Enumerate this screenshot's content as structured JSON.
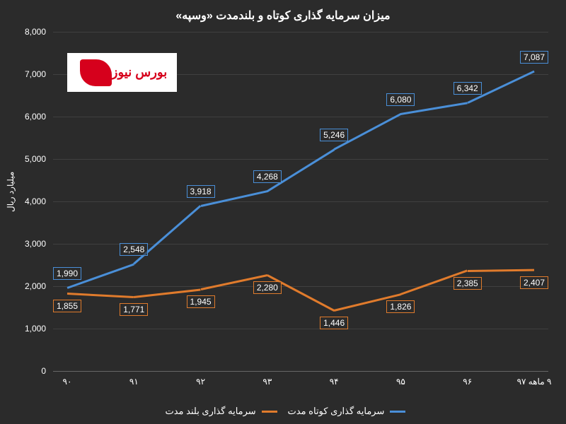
{
  "title": "میزان سرمایه گذاری کوتاه و بلندمدت «وسپه»",
  "ylabel": "میلیارد ریال",
  "background_color": "#2b2b2b",
  "grid_color": "#404040",
  "text_color": "#ffffff",
  "xlim": [
    0,
    7
  ],
  "ylim": [
    0,
    8000
  ],
  "ytick_step": 1000,
  "yticks": [
    {
      "v": 0,
      "label": "0"
    },
    {
      "v": 1000,
      "label": "1,000"
    },
    {
      "v": 2000,
      "label": "2,000"
    },
    {
      "v": 3000,
      "label": "3,000"
    },
    {
      "v": 4000,
      "label": "4,000"
    },
    {
      "v": 5000,
      "label": "5,000"
    },
    {
      "v": 6000,
      "label": "6,000"
    },
    {
      "v": 7000,
      "label": "7,000"
    },
    {
      "v": 8000,
      "label": "8,000"
    }
  ],
  "categories": [
    "۹۰",
    "۹۱",
    "۹۲",
    "۹۳",
    "۹۴",
    "۹۵",
    "۹۶",
    "۹ ماهه ۹۷"
  ],
  "series": [
    {
      "name": "سرمایه گذاری کوتاه مدت",
      "color": "#4a8fd8",
      "values": [
        1990,
        2548,
        3918,
        4268,
        5246,
        6080,
        6342,
        7087
      ],
      "label_offset": [
        -28,
        -28,
        -28,
        -28,
        -28,
        -28,
        -28,
        -28
      ],
      "labels": [
        "1,990",
        "2,548",
        "3,918",
        "4,268",
        "5,246",
        "6,080",
        "6,342",
        "7,087"
      ]
    },
    {
      "name": "سرمایه گذاری بلند مدت",
      "color": "#e07b2c",
      "values": [
        1855,
        1771,
        1945,
        2280,
        1446,
        1826,
        2385,
        2407
      ],
      "label_offset": [
        10,
        10,
        10,
        10,
        10,
        10,
        10,
        10
      ],
      "labels": [
        "1,855",
        "1,771",
        "1,945",
        "2,280",
        "1,446",
        "1,826",
        "2,385",
        "2,407"
      ]
    }
  ],
  "legend_items": [
    {
      "label": "سرمایه گذاری کوتاه مدت",
      "color": "#4a8fd8"
    },
    {
      "label": "سرمایه گذاری بلند مدت",
      "color": "#e07b2c"
    }
  ],
  "logo_text": "بورس نیوز",
  "title_fontsize": 16,
  "label_fontsize": 12,
  "line_width": 2.5
}
